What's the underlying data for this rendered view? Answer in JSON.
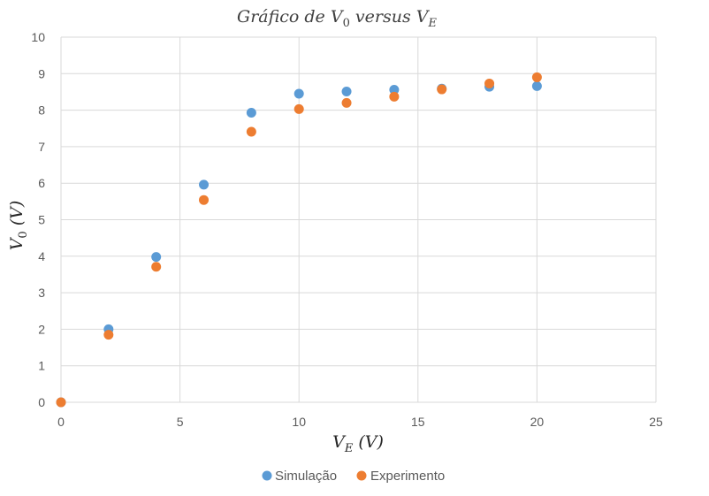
{
  "chart_data": {
    "type": "scatter",
    "title": "Gráfico de V0 versus VE",
    "title_parts": {
      "prefix": "Gráfico de ",
      "v_main": "V",
      "v_sub": "0",
      "middle": " versus ",
      "e_main": "V",
      "e_sub": "E"
    },
    "xlabel_parts": {
      "main": "V",
      "sub": "E",
      "unit": " (V)"
    },
    "ylabel_parts": {
      "main": "V",
      "sub": "0",
      "unit": " (V)"
    },
    "xlim": [
      0,
      25
    ],
    "ylim": [
      0,
      10
    ],
    "xticks": [
      "0",
      "5",
      "10",
      "15",
      "20",
      "25"
    ],
    "yticks": [
      "0",
      "1",
      "2",
      "3",
      "4",
      "5",
      "6",
      "7",
      "8",
      "9",
      "10"
    ],
    "grid": true,
    "legend_position": "bottom",
    "series": [
      {
        "name": "Simulação",
        "color": "#5b9bd5",
        "x": [
          0,
          2,
          4,
          6,
          8,
          10,
          12,
          14,
          16,
          18,
          20
        ],
        "y": [
          0,
          2.0,
          3.98,
          5.96,
          7.93,
          8.45,
          8.51,
          8.56,
          8.59,
          8.64,
          8.66
        ]
      },
      {
        "name": "Experimento",
        "color": "#ed7d31",
        "x": [
          0,
          2,
          4,
          6,
          8,
          10,
          12,
          14,
          16,
          18,
          20
        ],
        "y": [
          0,
          1.85,
          3.71,
          5.54,
          7.41,
          8.03,
          8.2,
          8.37,
          8.57,
          8.73,
          8.9
        ]
      }
    ]
  }
}
